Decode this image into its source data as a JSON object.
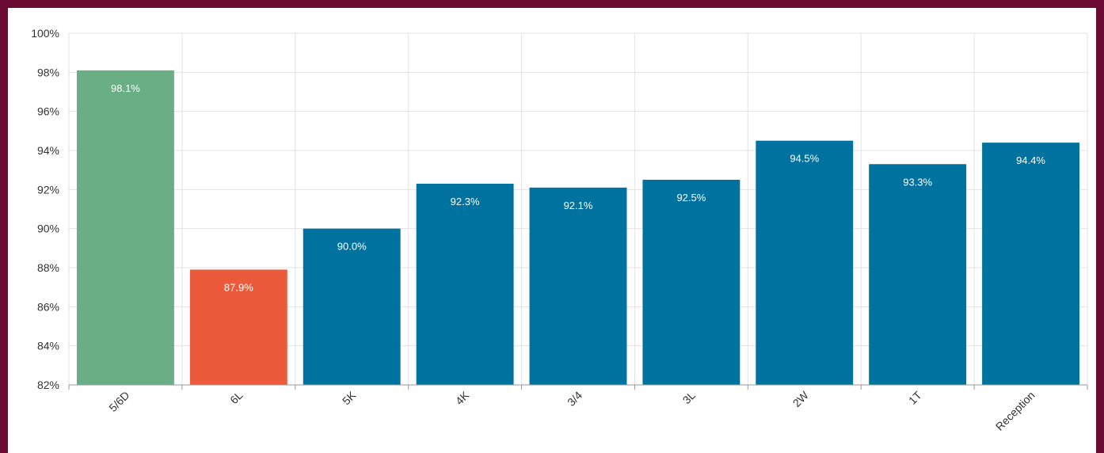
{
  "chart_data": {
    "type": "bar",
    "title": "",
    "xlabel": "",
    "ylabel": "",
    "categories": [
      "5/6D",
      "6L",
      "5K",
      "4K",
      "3/4",
      "3L",
      "2W",
      "1T",
      "Reception"
    ],
    "values": [
      98.1,
      87.9,
      90.0,
      92.3,
      92.1,
      92.5,
      94.5,
      93.3,
      94.4
    ],
    "data_labels": [
      "98.1%",
      "87.9%",
      "90.0%",
      "92.3%",
      "92.1%",
      "92.5%",
      "94.5%",
      "93.3%",
      "94.4%"
    ],
    "ylim": [
      82,
      100
    ],
    "yticks": [
      82,
      84,
      86,
      88,
      90,
      92,
      94,
      96,
      98,
      100
    ],
    "ytick_labels": [
      "82%",
      "84%",
      "86%",
      "88%",
      "90%",
      "92%",
      "94%",
      "96%",
      "98%",
      "100%"
    ],
    "bar_colors": [
      "#6aae85",
      "#eb5b3b",
      "#00729f",
      "#00729f",
      "#00729f",
      "#00729f",
      "#00729f",
      "#00729f",
      "#00729f"
    ],
    "grid": true,
    "legend": "none"
  },
  "colors": {
    "frame": "#6b0a33",
    "panel": "#ffffff",
    "grid": "#e3e3e3",
    "axis": "#999999",
    "text": "#333333",
    "label_on_bar": "#ffffff"
  }
}
